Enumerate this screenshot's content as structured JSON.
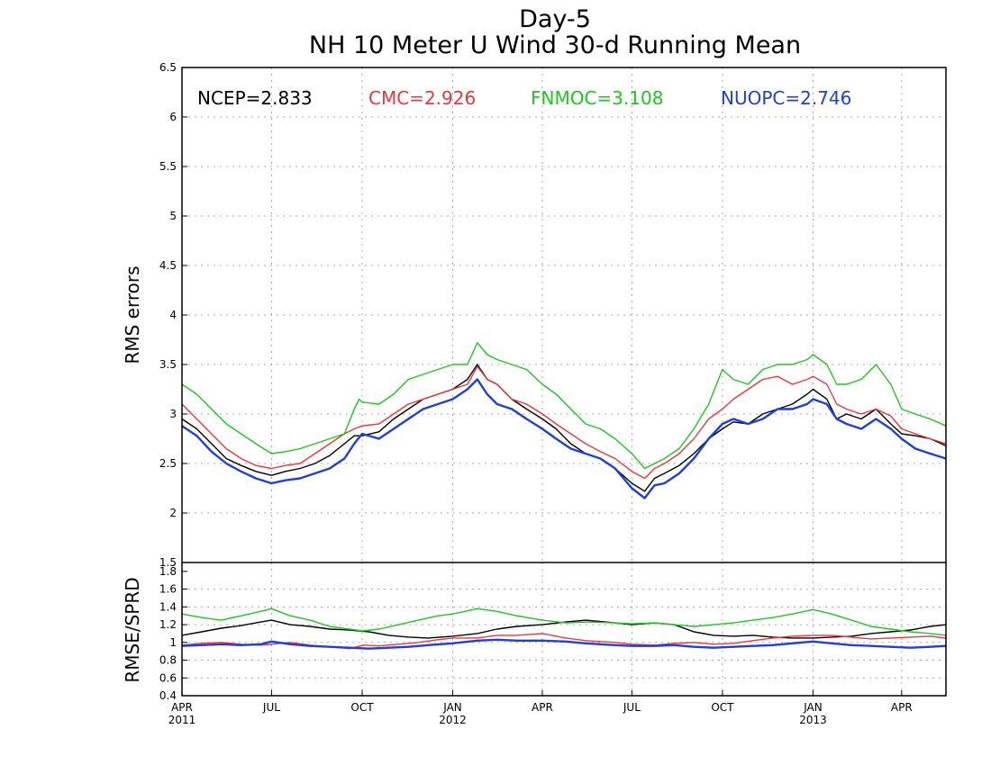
{
  "chart_data": {
    "type": "line",
    "title": "Day-5",
    "subtitle": "NH 10 Meter U Wind 30-d Running Mean",
    "x_ticks": [
      {
        "label": "APR",
        "sub": "2011",
        "day": 0
      },
      {
        "label": "JUL",
        "sub": "",
        "day": 91
      },
      {
        "label": "OCT",
        "sub": "",
        "day": 183
      },
      {
        "label": "JAN",
        "sub": "2012",
        "day": 275
      },
      {
        "label": "APR",
        "sub": "",
        "day": 366
      },
      {
        "label": "JUL",
        "sub": "",
        "day": 457
      },
      {
        "label": "OCT",
        "sub": "",
        "day": 549
      },
      {
        "label": "JAN",
        "sub": "2013",
        "day": 641
      },
      {
        "label": "APR",
        "sub": "",
        "day": 731
      }
    ],
    "x_range": [
      0,
      776
    ],
    "panels": [
      {
        "name": "rms",
        "ylabel": "RMS errors",
        "ylim": [
          1.5,
          6.5
        ],
        "yticks": [
          "1.5",
          "2",
          "2.5",
          "3",
          "3.5",
          "4",
          "4.5",
          "5",
          "5.5",
          "6",
          "6.5"
        ],
        "series": [
          {
            "name": "NCEP",
            "label": "NCEP=2.833",
            "color": "#000000",
            "width": 1.4,
            "x": [
              0,
              15,
              30,
              45,
              60,
              75,
              91,
              105,
              120,
              135,
              150,
              165,
              175,
              183,
              200,
              215,
              230,
              245,
              260,
              275,
              290,
              300,
              310,
              320,
              335,
              350,
              366,
              380,
              395,
              410,
              425,
              440,
              457,
              470,
              480,
              490,
              505,
              520,
              535,
              549,
              560,
              575,
              590,
              605,
              620,
              635,
              641,
              655,
              665,
              675,
              690,
              705,
              720,
              731,
              745,
              760,
              776
            ],
            "y": [
              2.95,
              2.85,
              2.7,
              2.55,
              2.48,
              2.42,
              2.38,
              2.42,
              2.45,
              2.5,
              2.58,
              2.7,
              2.78,
              2.78,
              2.82,
              2.95,
              3.05,
              3.15,
              3.2,
              3.25,
              3.35,
              3.5,
              3.35,
              3.3,
              3.15,
              3.05,
              2.95,
              2.85,
              2.7,
              2.6,
              2.55,
              2.45,
              2.3,
              2.22,
              2.35,
              2.4,
              2.48,
              2.6,
              2.75,
              2.85,
              2.92,
              2.9,
              3.0,
              3.05,
              3.1,
              3.2,
              3.25,
              3.15,
              2.95,
              3.0,
              2.95,
              3.05,
              2.9,
              2.8,
              2.78,
              2.75,
              2.68
            ]
          },
          {
            "name": "CMC",
            "label": "CMC=2.926",
            "color": "#e8383d",
            "width": 1.4,
            "x": [
              0,
              15,
              30,
              45,
              60,
              75,
              91,
              105,
              120,
              135,
              150,
              165,
              175,
              183,
              200,
              215,
              230,
              245,
              260,
              275,
              290,
              300,
              310,
              320,
              335,
              350,
              366,
              380,
              395,
              410,
              425,
              440,
              457,
              470,
              480,
              490,
              505,
              520,
              535,
              549,
              560,
              575,
              590,
              605,
              620,
              635,
              641,
              655,
              665,
              675,
              690,
              705,
              720,
              731,
              745,
              760,
              776
            ],
            "y": [
              3.1,
              2.95,
              2.8,
              2.65,
              2.55,
              2.48,
              2.45,
              2.48,
              2.5,
              2.6,
              2.7,
              2.8,
              2.85,
              2.88,
              2.9,
              3.0,
              3.1,
              3.15,
              3.2,
              3.25,
              3.3,
              3.48,
              3.35,
              3.3,
              3.15,
              3.1,
              3.0,
              2.9,
              2.8,
              2.7,
              2.62,
              2.55,
              2.42,
              2.35,
              2.45,
              2.5,
              2.6,
              2.75,
              2.95,
              3.05,
              3.15,
              3.25,
              3.35,
              3.38,
              3.3,
              3.35,
              3.38,
              3.3,
              3.1,
              3.05,
              3.0,
              3.05,
              2.98,
              2.85,
              2.8,
              2.75,
              2.7
            ]
          },
          {
            "name": "FNMOC",
            "label": "FNMOC=3.108",
            "color": "#21c521",
            "width": 1.4,
            "x": [
              0,
              15,
              30,
              45,
              60,
              75,
              91,
              105,
              120,
              135,
              150,
              165,
              175,
              180,
              183,
              200,
              215,
              230,
              245,
              260,
              275,
              290,
              300,
              310,
              320,
              335,
              350,
              366,
              380,
              395,
              410,
              425,
              440,
              457,
              470,
              480,
              490,
              505,
              520,
              535,
              549,
              560,
              575,
              590,
              605,
              620,
              635,
              641,
              655,
              665,
              675,
              690,
              705,
              720,
              731,
              745,
              760,
              776
            ],
            "y": [
              3.3,
              3.2,
              3.05,
              2.9,
              2.8,
              2.7,
              2.6,
              2.62,
              2.65,
              2.7,
              2.75,
              2.8,
              3.05,
              3.15,
              3.12,
              3.1,
              3.2,
              3.35,
              3.4,
              3.45,
              3.5,
              3.5,
              3.72,
              3.6,
              3.55,
              3.5,
              3.45,
              3.3,
              3.2,
              3.05,
              2.9,
              2.85,
              2.75,
              2.6,
              2.45,
              2.5,
              2.55,
              2.65,
              2.85,
              3.1,
              3.45,
              3.35,
              3.3,
              3.45,
              3.5,
              3.5,
              3.55,
              3.6,
              3.5,
              3.3,
              3.3,
              3.35,
              3.5,
              3.3,
              3.05,
              3.0,
              2.95,
              2.88
            ]
          },
          {
            "name": "NUOPC",
            "label": "NUOPC=2.746",
            "color": "#1f3fd8",
            "width": 2.4,
            "x": [
              0,
              15,
              30,
              45,
              60,
              75,
              91,
              105,
              120,
              135,
              150,
              165,
              175,
              183,
              200,
              215,
              230,
              245,
              260,
              275,
              290,
              300,
              310,
              320,
              335,
              350,
              366,
              380,
              395,
              410,
              425,
              440,
              457,
              470,
              480,
              490,
              505,
              520,
              535,
              549,
              560,
              575,
              590,
              605,
              620,
              635,
              641,
              655,
              665,
              675,
              690,
              705,
              720,
              731,
              745,
              760,
              776
            ],
            "y": [
              2.88,
              2.78,
              2.62,
              2.5,
              2.42,
              2.35,
              2.3,
              2.33,
              2.35,
              2.4,
              2.45,
              2.55,
              2.7,
              2.8,
              2.75,
              2.85,
              2.95,
              3.05,
              3.1,
              3.15,
              3.25,
              3.35,
              3.2,
              3.1,
              3.05,
              2.95,
              2.85,
              2.75,
              2.65,
              2.6,
              2.55,
              2.45,
              2.25,
              2.15,
              2.28,
              2.3,
              2.4,
              2.55,
              2.75,
              2.9,
              2.95,
              2.9,
              2.95,
              3.05,
              3.05,
              3.1,
              3.15,
              3.1,
              2.95,
              2.9,
              2.85,
              2.95,
              2.85,
              2.75,
              2.65,
              2.6,
              2.55
            ]
          }
        ]
      },
      {
        "name": "ratio",
        "ylabel": "RMSE/SPRD",
        "ylim": [
          0.4,
          1.9
        ],
        "yticks": [
          "0.4",
          "0.6",
          "0.8",
          "1",
          "1.2",
          "1.4",
          "1.6",
          "1.8"
        ],
        "series": [
          {
            "name": "NCEP",
            "color": "#000000",
            "width": 1.4,
            "x": [
              0,
              20,
              40,
              60,
              80,
              91,
              110,
              130,
              150,
              170,
              190,
              210,
              230,
              250,
              275,
              300,
              320,
              340,
              366,
              390,
              410,
              440,
              457,
              480,
              500,
              520,
              540,
              560,
              580,
              600,
              620,
              641,
              660,
              680,
              700,
              720,
              740,
              760,
              776
            ],
            "y": [
              1.08,
              1.12,
              1.16,
              1.19,
              1.23,
              1.25,
              1.2,
              1.18,
              1.15,
              1.14,
              1.12,
              1.08,
              1.06,
              1.05,
              1.07,
              1.1,
              1.15,
              1.18,
              1.2,
              1.23,
              1.25,
              1.22,
              1.2,
              1.22,
              1.2,
              1.12,
              1.08,
              1.07,
              1.08,
              1.06,
              1.05,
              1.05,
              1.06,
              1.07,
              1.1,
              1.12,
              1.14,
              1.18,
              1.2
            ]
          },
          {
            "name": "CMC",
            "color": "#e8383d",
            "width": 1.4,
            "x": [
              0,
              20,
              40,
              60,
              80,
              91,
              110,
              130,
              150,
              170,
              185,
              200,
              220,
              240,
              260,
              275,
              300,
              320,
              340,
              366,
              390,
              410,
              440,
              457,
              480,
              500,
              520,
              540,
              560,
              580,
              600,
              620,
              641,
              660,
              680,
              700,
              720,
              740,
              760,
              776
            ],
            "y": [
              0.97,
              0.99,
              1.0,
              0.98,
              0.97,
              0.98,
              1.0,
              0.97,
              0.95,
              0.93,
              0.97,
              0.96,
              0.98,
              1.0,
              1.03,
              1.05,
              1.05,
              1.08,
              1.08,
              1.1,
              1.05,
              1.02,
              1.0,
              0.98,
              0.97,
              0.99,
              1.0,
              0.98,
              0.99,
              1.02,
              1.05,
              1.07,
              1.08,
              1.08,
              1.06,
              1.04,
              1.05,
              1.06,
              1.07,
              1.05
            ]
          },
          {
            "name": "FNMOC",
            "color": "#21c521",
            "width": 1.4,
            "x": [
              0,
              20,
              40,
              60,
              80,
              91,
              110,
              130,
              150,
              170,
              183,
              200,
              220,
              240,
              260,
              275,
              300,
              320,
              340,
              366,
              390,
              410,
              440,
              457,
              480,
              500,
              520,
              540,
              560,
              580,
              600,
              620,
              641,
              660,
              680,
              700,
              720,
              740,
              760,
              776
            ],
            "y": [
              1.32,
              1.28,
              1.25,
              1.3,
              1.35,
              1.38,
              1.3,
              1.25,
              1.18,
              1.15,
              1.13,
              1.15,
              1.2,
              1.25,
              1.3,
              1.32,
              1.38,
              1.35,
              1.3,
              1.25,
              1.22,
              1.23,
              1.22,
              1.21,
              1.22,
              1.2,
              1.18,
              1.2,
              1.22,
              1.25,
              1.28,
              1.32,
              1.37,
              1.32,
              1.25,
              1.18,
              1.15,
              1.12,
              1.1,
              1.08
            ]
          },
          {
            "name": "NUOPC",
            "color": "#1f3fd8",
            "width": 2.4,
            "x": [
              0,
              20,
              40,
              60,
              80,
              91,
              110,
              130,
              150,
              170,
              190,
              210,
              230,
              250,
              275,
              300,
              320,
              340,
              366,
              390,
              410,
              440,
              457,
              480,
              500,
              520,
              540,
              560,
              580,
              600,
              620,
              641,
              660,
              680,
              700,
              720,
              740,
              760,
              776
            ],
            "y": [
              0.96,
              0.97,
              0.98,
              0.97,
              0.98,
              1.01,
              0.98,
              0.96,
              0.95,
              0.94,
              0.93,
              0.94,
              0.95,
              0.97,
              0.99,
              1.02,
              1.03,
              1.02,
              1.02,
              1.01,
              0.99,
              0.97,
              0.96,
              0.96,
              0.97,
              0.95,
              0.94,
              0.95,
              0.96,
              0.97,
              0.99,
              1.01,
              0.99,
              0.97,
              0.96,
              0.95,
              0.94,
              0.95,
              0.96
            ]
          }
        ]
      }
    ]
  }
}
